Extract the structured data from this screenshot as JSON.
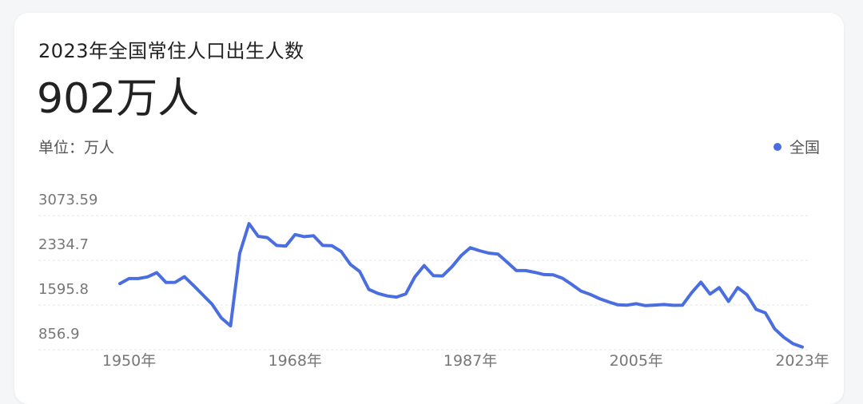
{
  "card": {
    "title": "2023年全国常住人口出生人数",
    "value": "902万人",
    "unit_label": "单位：万人",
    "legend_label": "全国"
  },
  "colors": {
    "line": "#4a6ee0",
    "grid": "#e3e5ea",
    "axis_text": "#777777"
  },
  "chart_data": {
    "type": "line",
    "title": "2023年全国常住人口出生人数",
    "xlabel": "",
    "ylabel": "",
    "unit": "万人",
    "x_ticks": [
      "1950年",
      "1968年",
      "1987年",
      "2005年",
      "2023年"
    ],
    "y_ticks": [
      "3073.59",
      "2334.7",
      "1595.8",
      "856.9"
    ],
    "ylim": [
      856.9,
      3073.59
    ],
    "xlim": [
      1949,
      2023
    ],
    "legend": "top-right",
    "grid": true,
    "series": [
      {
        "name": "全国",
        "x": [
          1949,
          1950,
          1951,
          1952,
          1953,
          1954,
          1955,
          1956,
          1957,
          1958,
          1959,
          1960,
          1961,
          1962,
          1963,
          1964,
          1965,
          1966,
          1967,
          1968,
          1969,
          1970,
          1971,
          1972,
          1973,
          1974,
          1975,
          1976,
          1977,
          1978,
          1979,
          1980,
          1981,
          1982,
          1983,
          1984,
          1985,
          1986,
          1987,
          1988,
          1989,
          1990,
          1991,
          1992,
          1993,
          1994,
          1995,
          1996,
          1997,
          1998,
          1999,
          2000,
          2001,
          2002,
          2003,
          2004,
          2005,
          2006,
          2007,
          2008,
          2009,
          2010,
          2011,
          2012,
          2013,
          2014,
          2015,
          2016,
          2017,
          2018,
          2019,
          2020,
          2021,
          2022,
          2023
        ],
        "values": [
          1950,
          2032,
          2033,
          2060,
          2130,
          1969,
          1970,
          2063,
          1917,
          1762,
          1609,
          1383,
          1252,
          2451,
          2940,
          2730,
          2710,
          2580,
          2570,
          2760,
          2725,
          2740,
          2580,
          2575,
          2480,
          2266,
          2150,
          1853,
          1786,
          1745,
          1727,
          1779,
          2063,
          2247,
          2080,
          2076,
          2226,
          2410,
          2542,
          2493,
          2453,
          2438,
          2303,
          2164,
          2164,
          2136,
          2099,
          2095,
          2038,
          1936,
          1827,
          1771,
          1702,
          1647,
          1599,
          1593,
          1617,
          1585,
          1595,
          1604,
          1591,
          1592,
          1798,
          1973,
          1776,
          1883,
          1655,
          1883,
          1765,
          1523,
          1465,
          1202,
          1062,
          956,
          902
        ]
      }
    ]
  }
}
